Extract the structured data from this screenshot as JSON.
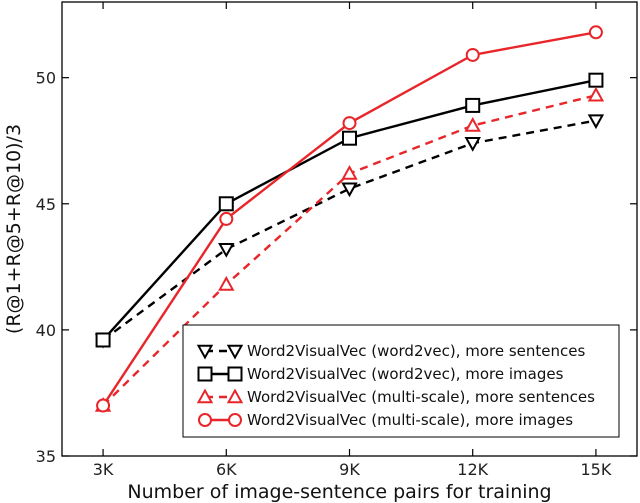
{
  "chart_data": {
    "type": "line",
    "xlabel": "Number of image-sentence pairs for training",
    "ylabel": "(R@1+R@5+R@10)/3",
    "categories": [
      "3K",
      "6K",
      "9K",
      "12K",
      "15K"
    ],
    "xlim": [
      2,
      16
    ],
    "ylim": [
      35,
      53
    ],
    "yticks": [
      35,
      40,
      45,
      50
    ],
    "grid": false,
    "legend_position": "lower-right",
    "series": [
      {
        "name": "Word2VisualVec (word2vec), more sentences",
        "color": "#000000",
        "linestyle": "dashed",
        "marker": "triangle-down",
        "values": [
          39.6,
          43.2,
          45.6,
          47.4,
          48.3
        ]
      },
      {
        "name": "Word2VisualVec (word2vec), more images",
        "color": "#000000",
        "linestyle": "solid",
        "marker": "square",
        "values": [
          39.6,
          45.0,
          47.6,
          48.9,
          49.9
        ]
      },
      {
        "name": "Word2VisualVec (multi-scale), more sentences",
        "color": "#e8262a",
        "linestyle": "dashed",
        "marker": "triangle-up",
        "values": [
          37.0,
          41.8,
          46.2,
          48.1,
          49.3
        ]
      },
      {
        "name": "Word2VisualVec (multi-scale), more images",
        "color": "#e8262a",
        "linestyle": "solid",
        "marker": "circle",
        "values": [
          37.0,
          44.4,
          48.2,
          50.9,
          51.8
        ]
      }
    ]
  }
}
